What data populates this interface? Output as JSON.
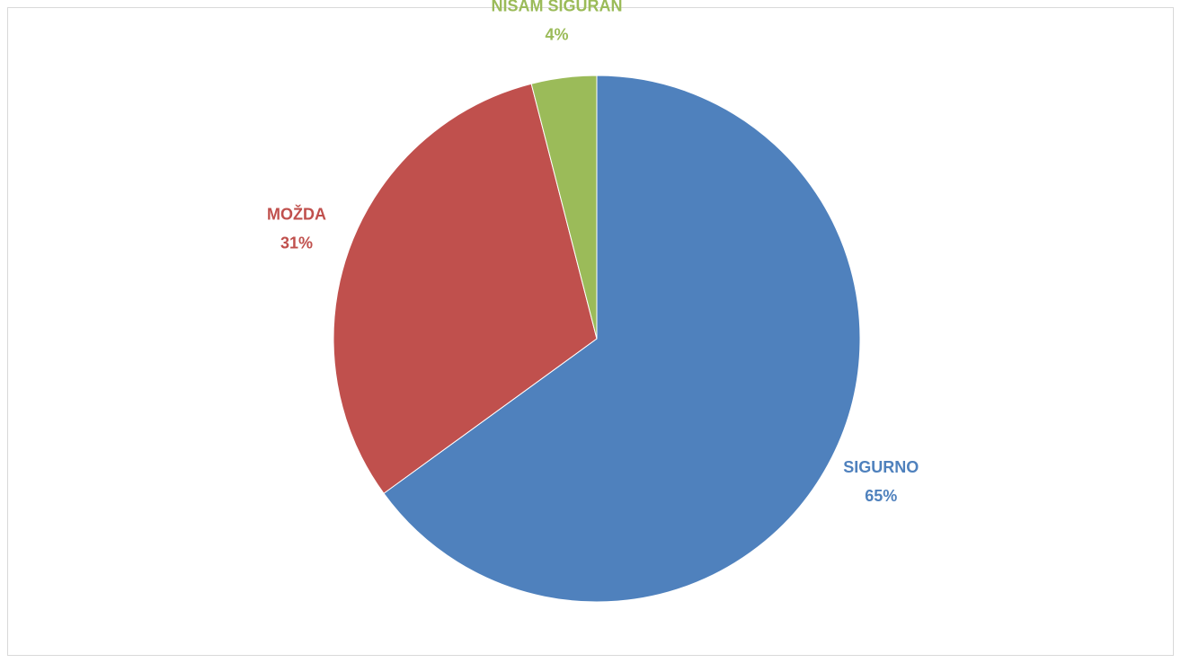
{
  "chart_data": {
    "type": "pie",
    "categories": [
      "SIGURNO",
      "MOŽDA",
      "NISAM SIGURAN"
    ],
    "values": [
      65,
      31,
      4
    ],
    "value_labels": [
      "65%",
      "31%",
      "4%"
    ],
    "colors": [
      "#4f81bd",
      "#c0504d",
      "#9bbb59"
    ]
  }
}
